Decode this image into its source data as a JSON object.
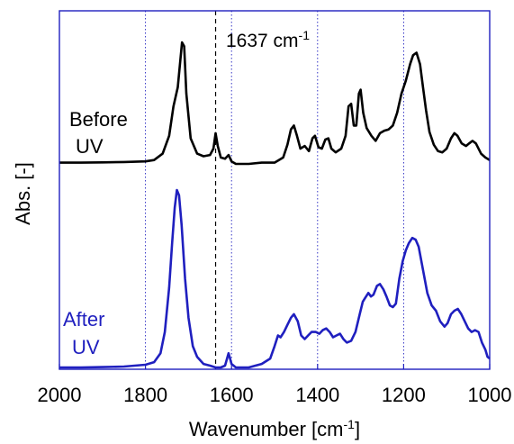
{
  "chart_data": {
    "type": "line",
    "title": "",
    "xlabel": "Wavenumber [cm",
    "xlabel_superscript": "-1",
    "xlabel_suffix": "]",
    "ylabel": "Abs. [-]",
    "xlim": [
      2000,
      1000
    ],
    "x_reversed": true,
    "y_ticks_shown": false,
    "grid": "vertical dotted lines at 1800, 1600, 1400, 1200",
    "frame_color": "#1f1fbf",
    "x_ticks": [
      2000,
      1800,
      1600,
      1400,
      1200,
      1000
    ],
    "x_tick_labels": [
      "2000",
      "1800",
      "1600",
      "1400",
      "1200",
      "1000"
    ],
    "annotation": {
      "x": 1637,
      "text": "1637 cm",
      "superscript": "-1",
      "style": "dashed"
    },
    "series": [
      {
        "name": "Before UV",
        "label_lines": [
          "Before",
          "UV"
        ],
        "color": "#000000",
        "points": [
          [
            2000,
            0.01
          ],
          [
            1950,
            0.01
          ],
          [
            1900,
            0.012
          ],
          [
            1850,
            0.015
          ],
          [
            1800,
            0.02
          ],
          [
            1780,
            0.03
          ],
          [
            1760,
            0.08
          ],
          [
            1745,
            0.22
          ],
          [
            1735,
            0.45
          ],
          [
            1725,
            0.6
          ],
          [
            1715,
            0.95
          ],
          [
            1710,
            0.92
          ],
          [
            1705,
            0.55
          ],
          [
            1695,
            0.2
          ],
          [
            1680,
            0.08
          ],
          [
            1665,
            0.06
          ],
          [
            1650,
            0.07
          ],
          [
            1642,
            0.12
          ],
          [
            1637,
            0.24
          ],
          [
            1632,
            0.14
          ],
          [
            1625,
            0.05
          ],
          [
            1615,
            0.04
          ],
          [
            1607,
            0.07
          ],
          [
            1600,
            0.02
          ],
          [
            1590,
            0.0
          ],
          [
            1560,
            0.0
          ],
          [
            1530,
            0.01
          ],
          [
            1500,
            0.01
          ],
          [
            1480,
            0.05
          ],
          [
            1470,
            0.15
          ],
          [
            1462,
            0.27
          ],
          [
            1455,
            0.3
          ],
          [
            1448,
            0.22
          ],
          [
            1440,
            0.12
          ],
          [
            1430,
            0.14
          ],
          [
            1420,
            0.1
          ],
          [
            1412,
            0.2
          ],
          [
            1406,
            0.22
          ],
          [
            1398,
            0.13
          ],
          [
            1390,
            0.12
          ],
          [
            1382,
            0.19
          ],
          [
            1375,
            0.2
          ],
          [
            1368,
            0.12
          ],
          [
            1358,
            0.09
          ],
          [
            1345,
            0.12
          ],
          [
            1335,
            0.22
          ],
          [
            1328,
            0.45
          ],
          [
            1322,
            0.47
          ],
          [
            1316,
            0.3
          ],
          [
            1310,
            0.3
          ],
          [
            1304,
            0.55
          ],
          [
            1300,
            0.58
          ],
          [
            1294,
            0.4
          ],
          [
            1286,
            0.28
          ],
          [
            1275,
            0.22
          ],
          [
            1265,
            0.18
          ],
          [
            1255,
            0.24
          ],
          [
            1245,
            0.26
          ],
          [
            1235,
            0.27
          ],
          [
            1225,
            0.3
          ],
          [
            1215,
            0.4
          ],
          [
            1205,
            0.55
          ],
          [
            1195,
            0.65
          ],
          [
            1185,
            0.78
          ],
          [
            1178,
            0.85
          ],
          [
            1170,
            0.87
          ],
          [
            1162,
            0.78
          ],
          [
            1155,
            0.6
          ],
          [
            1148,
            0.42
          ],
          [
            1140,
            0.25
          ],
          [
            1130,
            0.15
          ],
          [
            1120,
            0.1
          ],
          [
            1110,
            0.09
          ],
          [
            1100,
            0.12
          ],
          [
            1090,
            0.2
          ],
          [
            1082,
            0.24
          ],
          [
            1075,
            0.22
          ],
          [
            1065,
            0.16
          ],
          [
            1055,
            0.14
          ],
          [
            1048,
            0.16
          ],
          [
            1040,
            0.18
          ],
          [
            1032,
            0.16
          ],
          [
            1020,
            0.08
          ],
          [
            1010,
            0.05
          ],
          [
            1000,
            0.03
          ]
        ]
      },
      {
        "name": "After UV",
        "label_lines": [
          "After",
          "UV"
        ],
        "color": "#1f1fbf",
        "points": [
          [
            2000,
            0.0
          ],
          [
            1950,
            0.0
          ],
          [
            1900,
            0.002
          ],
          [
            1850,
            0.005
          ],
          [
            1800,
            0.015
          ],
          [
            1780,
            0.03
          ],
          [
            1765,
            0.08
          ],
          [
            1755,
            0.2
          ],
          [
            1745,
            0.45
          ],
          [
            1738,
            0.7
          ],
          [
            1732,
            0.9
          ],
          [
            1727,
            1.0
          ],
          [
            1722,
            0.97
          ],
          [
            1716,
            0.8
          ],
          [
            1708,
            0.5
          ],
          [
            1700,
            0.28
          ],
          [
            1690,
            0.12
          ],
          [
            1680,
            0.06
          ],
          [
            1665,
            0.02
          ],
          [
            1650,
            0.01
          ],
          [
            1637,
            0.0
          ],
          [
            1625,
            0.0
          ],
          [
            1615,
            0.01
          ],
          [
            1607,
            0.08
          ],
          [
            1600,
            0.02
          ],
          [
            1590,
            0.0
          ],
          [
            1560,
            0.0
          ],
          [
            1530,
            0.02
          ],
          [
            1510,
            0.05
          ],
          [
            1500,
            0.12
          ],
          [
            1492,
            0.18
          ],
          [
            1486,
            0.17
          ],
          [
            1478,
            0.2
          ],
          [
            1470,
            0.24
          ],
          [
            1462,
            0.28
          ],
          [
            1455,
            0.3
          ],
          [
            1446,
            0.26
          ],
          [
            1438,
            0.18
          ],
          [
            1430,
            0.16
          ],
          [
            1422,
            0.18
          ],
          [
            1414,
            0.2
          ],
          [
            1404,
            0.2
          ],
          [
            1396,
            0.19
          ],
          [
            1388,
            0.21
          ],
          [
            1380,
            0.22
          ],
          [
            1372,
            0.2
          ],
          [
            1364,
            0.17
          ],
          [
            1356,
            0.18
          ],
          [
            1348,
            0.19
          ],
          [
            1340,
            0.16
          ],
          [
            1332,
            0.14
          ],
          [
            1322,
            0.15
          ],
          [
            1312,
            0.2
          ],
          [
            1302,
            0.3
          ],
          [
            1295,
            0.37
          ],
          [
            1290,
            0.39
          ],
          [
            1282,
            0.42
          ],
          [
            1276,
            0.4
          ],
          [
            1270,
            0.41
          ],
          [
            1262,
            0.46
          ],
          [
            1255,
            0.47
          ],
          [
            1247,
            0.44
          ],
          [
            1240,
            0.4
          ],
          [
            1232,
            0.35
          ],
          [
            1225,
            0.34
          ],
          [
            1218,
            0.36
          ],
          [
            1210,
            0.5
          ],
          [
            1202,
            0.6
          ],
          [
            1195,
            0.66
          ],
          [
            1188,
            0.7
          ],
          [
            1180,
            0.73
          ],
          [
            1172,
            0.72
          ],
          [
            1165,
            0.68
          ],
          [
            1155,
            0.55
          ],
          [
            1145,
            0.42
          ],
          [
            1135,
            0.35
          ],
          [
            1125,
            0.32
          ],
          [
            1115,
            0.26
          ],
          [
            1105,
            0.23
          ],
          [
            1098,
            0.25
          ],
          [
            1090,
            0.3
          ],
          [
            1082,
            0.32
          ],
          [
            1074,
            0.33
          ],
          [
            1066,
            0.3
          ],
          [
            1058,
            0.26
          ],
          [
            1050,
            0.22
          ],
          [
            1042,
            0.2
          ],
          [
            1034,
            0.21
          ],
          [
            1026,
            0.2
          ],
          [
            1018,
            0.14
          ],
          [
            1010,
            0.1
          ],
          [
            1005,
            0.06
          ],
          [
            1000,
            0.05
          ]
        ]
      }
    ]
  }
}
